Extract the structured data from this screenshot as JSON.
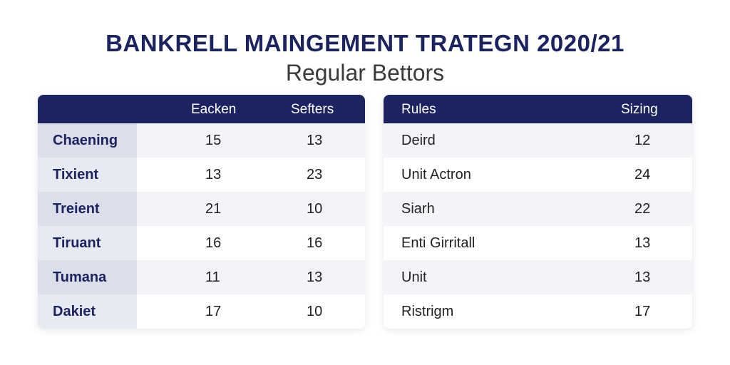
{
  "title": "BANKRELL MAINGEMENT TRATEGN 2020/21",
  "subtitle": "Regular Bettors",
  "left_table": {
    "columns": [
      "",
      "Eacken",
      "Sefters"
    ],
    "rows": [
      {
        "label": "Chaening",
        "col1": "15",
        "col2": "13"
      },
      {
        "label": "Tixient",
        "col1": "13",
        "col2": "23"
      },
      {
        "label": "Treient",
        "col1": "21",
        "col2": "10"
      },
      {
        "label": "Tiruant",
        "col1": "16",
        "col2": "16"
      },
      {
        "label": "Tumana",
        "col1": "11",
        "col2": "13"
      },
      {
        "label": "Dakiet",
        "col1": "17",
        "col2": "10"
      }
    ]
  },
  "right_table": {
    "columns": [
      "Rules",
      "Sizing"
    ],
    "rows": [
      {
        "rule": "Deird",
        "size": "12"
      },
      {
        "rule": "Unit Actron",
        "size": "24"
      },
      {
        "rule": "Siarh",
        "size": "22"
      },
      {
        "rule": "Enti Girritall",
        "size": "13"
      },
      {
        "rule": "Unit",
        "size": "13"
      },
      {
        "rule": "Ristrigm",
        "size": "17"
      }
    ]
  },
  "colors": {
    "header_bg": "#1b2460",
    "title": "#1b2460",
    "row_alt": "#f3f4f8"
  }
}
